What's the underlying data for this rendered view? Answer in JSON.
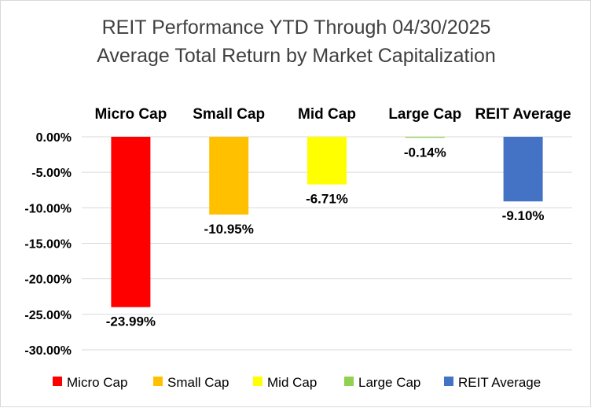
{
  "chart_data": {
    "type": "bar",
    "title": "REIT Performance YTD Through 04/30/2025",
    "subtitle": "Average Total Return by Market Capitalization",
    "categories": [
      "Micro Cap",
      "Small Cap",
      "Mid Cap",
      "Large Cap",
      "REIT Average"
    ],
    "values": [
      -23.99,
      -10.95,
      -6.71,
      -0.14,
      -9.1
    ],
    "value_labels": [
      "-23.99%",
      "-10.95%",
      "-6.71%",
      "-0.14%",
      "-9.10%"
    ],
    "colors": [
      "#ff0000",
      "#ffc000",
      "#ffff00",
      "#92d050",
      "#4472c4"
    ],
    "ylim": [
      -30,
      0
    ],
    "yticks": [
      0,
      -5,
      -10,
      -15,
      -20,
      -25,
      -30
    ],
    "ytick_labels": [
      "0.00%",
      "-5.00%",
      "-10.00%",
      "-15.00%",
      "-20.00%",
      "-25.00%",
      "-30.00%"
    ],
    "xlabel": "",
    "ylabel": "",
    "grid": true,
    "category_labels_position": "top",
    "legend": {
      "position": "bottom",
      "entries": [
        "Micro Cap",
        "Small Cap",
        "Mid Cap",
        "Large Cap",
        "REIT Average"
      ]
    }
  }
}
